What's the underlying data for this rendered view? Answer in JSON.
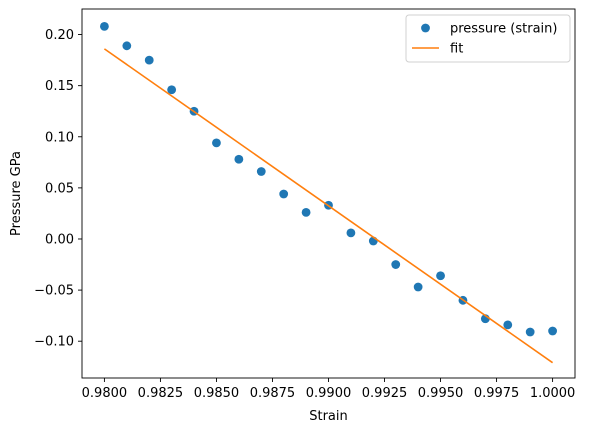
{
  "chart_data": {
    "type": "scatter",
    "xlabel": "Strain",
    "ylabel": "Pressure GPa",
    "xlim": [
      0.979,
      1.001
    ],
    "ylim": [
      -0.136,
      0.225
    ],
    "xticks": [
      0.98,
      0.9825,
      0.985,
      0.9875,
      0.99,
      0.9925,
      0.995,
      0.9975,
      1.0
    ],
    "xtick_labels": [
      "0.9800",
      "0.9825",
      "0.9850",
      "0.9875",
      "0.9900",
      "0.9925",
      "0.9950",
      "0.9975",
      "1.0000"
    ],
    "yticks": [
      -0.1,
      -0.05,
      0.0,
      0.05,
      0.1,
      0.15,
      0.2
    ],
    "ytick_labels": [
      "−0.10",
      "−0.05",
      "0.00",
      "0.05",
      "0.10",
      "0.15",
      "0.20"
    ],
    "grid": false,
    "legend_position": "top-right",
    "series": [
      {
        "name": "pressure (strain)",
        "kind": "markers",
        "color": "#1f77b4",
        "x": [
          0.98,
          0.981,
          0.982,
          0.983,
          0.984,
          0.985,
          0.986,
          0.987,
          0.988,
          0.989,
          0.99,
          0.991,
          0.992,
          0.993,
          0.994,
          0.995,
          0.996,
          0.997,
          0.998,
          0.999,
          1.0
        ],
        "y": [
          0.208,
          0.189,
          0.175,
          0.146,
          0.125,
          0.094,
          0.078,
          0.066,
          0.044,
          0.026,
          0.033,
          0.006,
          -0.002,
          -0.025,
          -0.047,
          -0.036,
          -0.06,
          -0.078,
          -0.084,
          -0.091,
          -0.09
        ]
      },
      {
        "name": "fit",
        "kind": "line",
        "color": "#ff7f0e",
        "x": [
          0.98,
          1.0
        ],
        "y": [
          0.186,
          -0.121
        ]
      }
    ]
  }
}
